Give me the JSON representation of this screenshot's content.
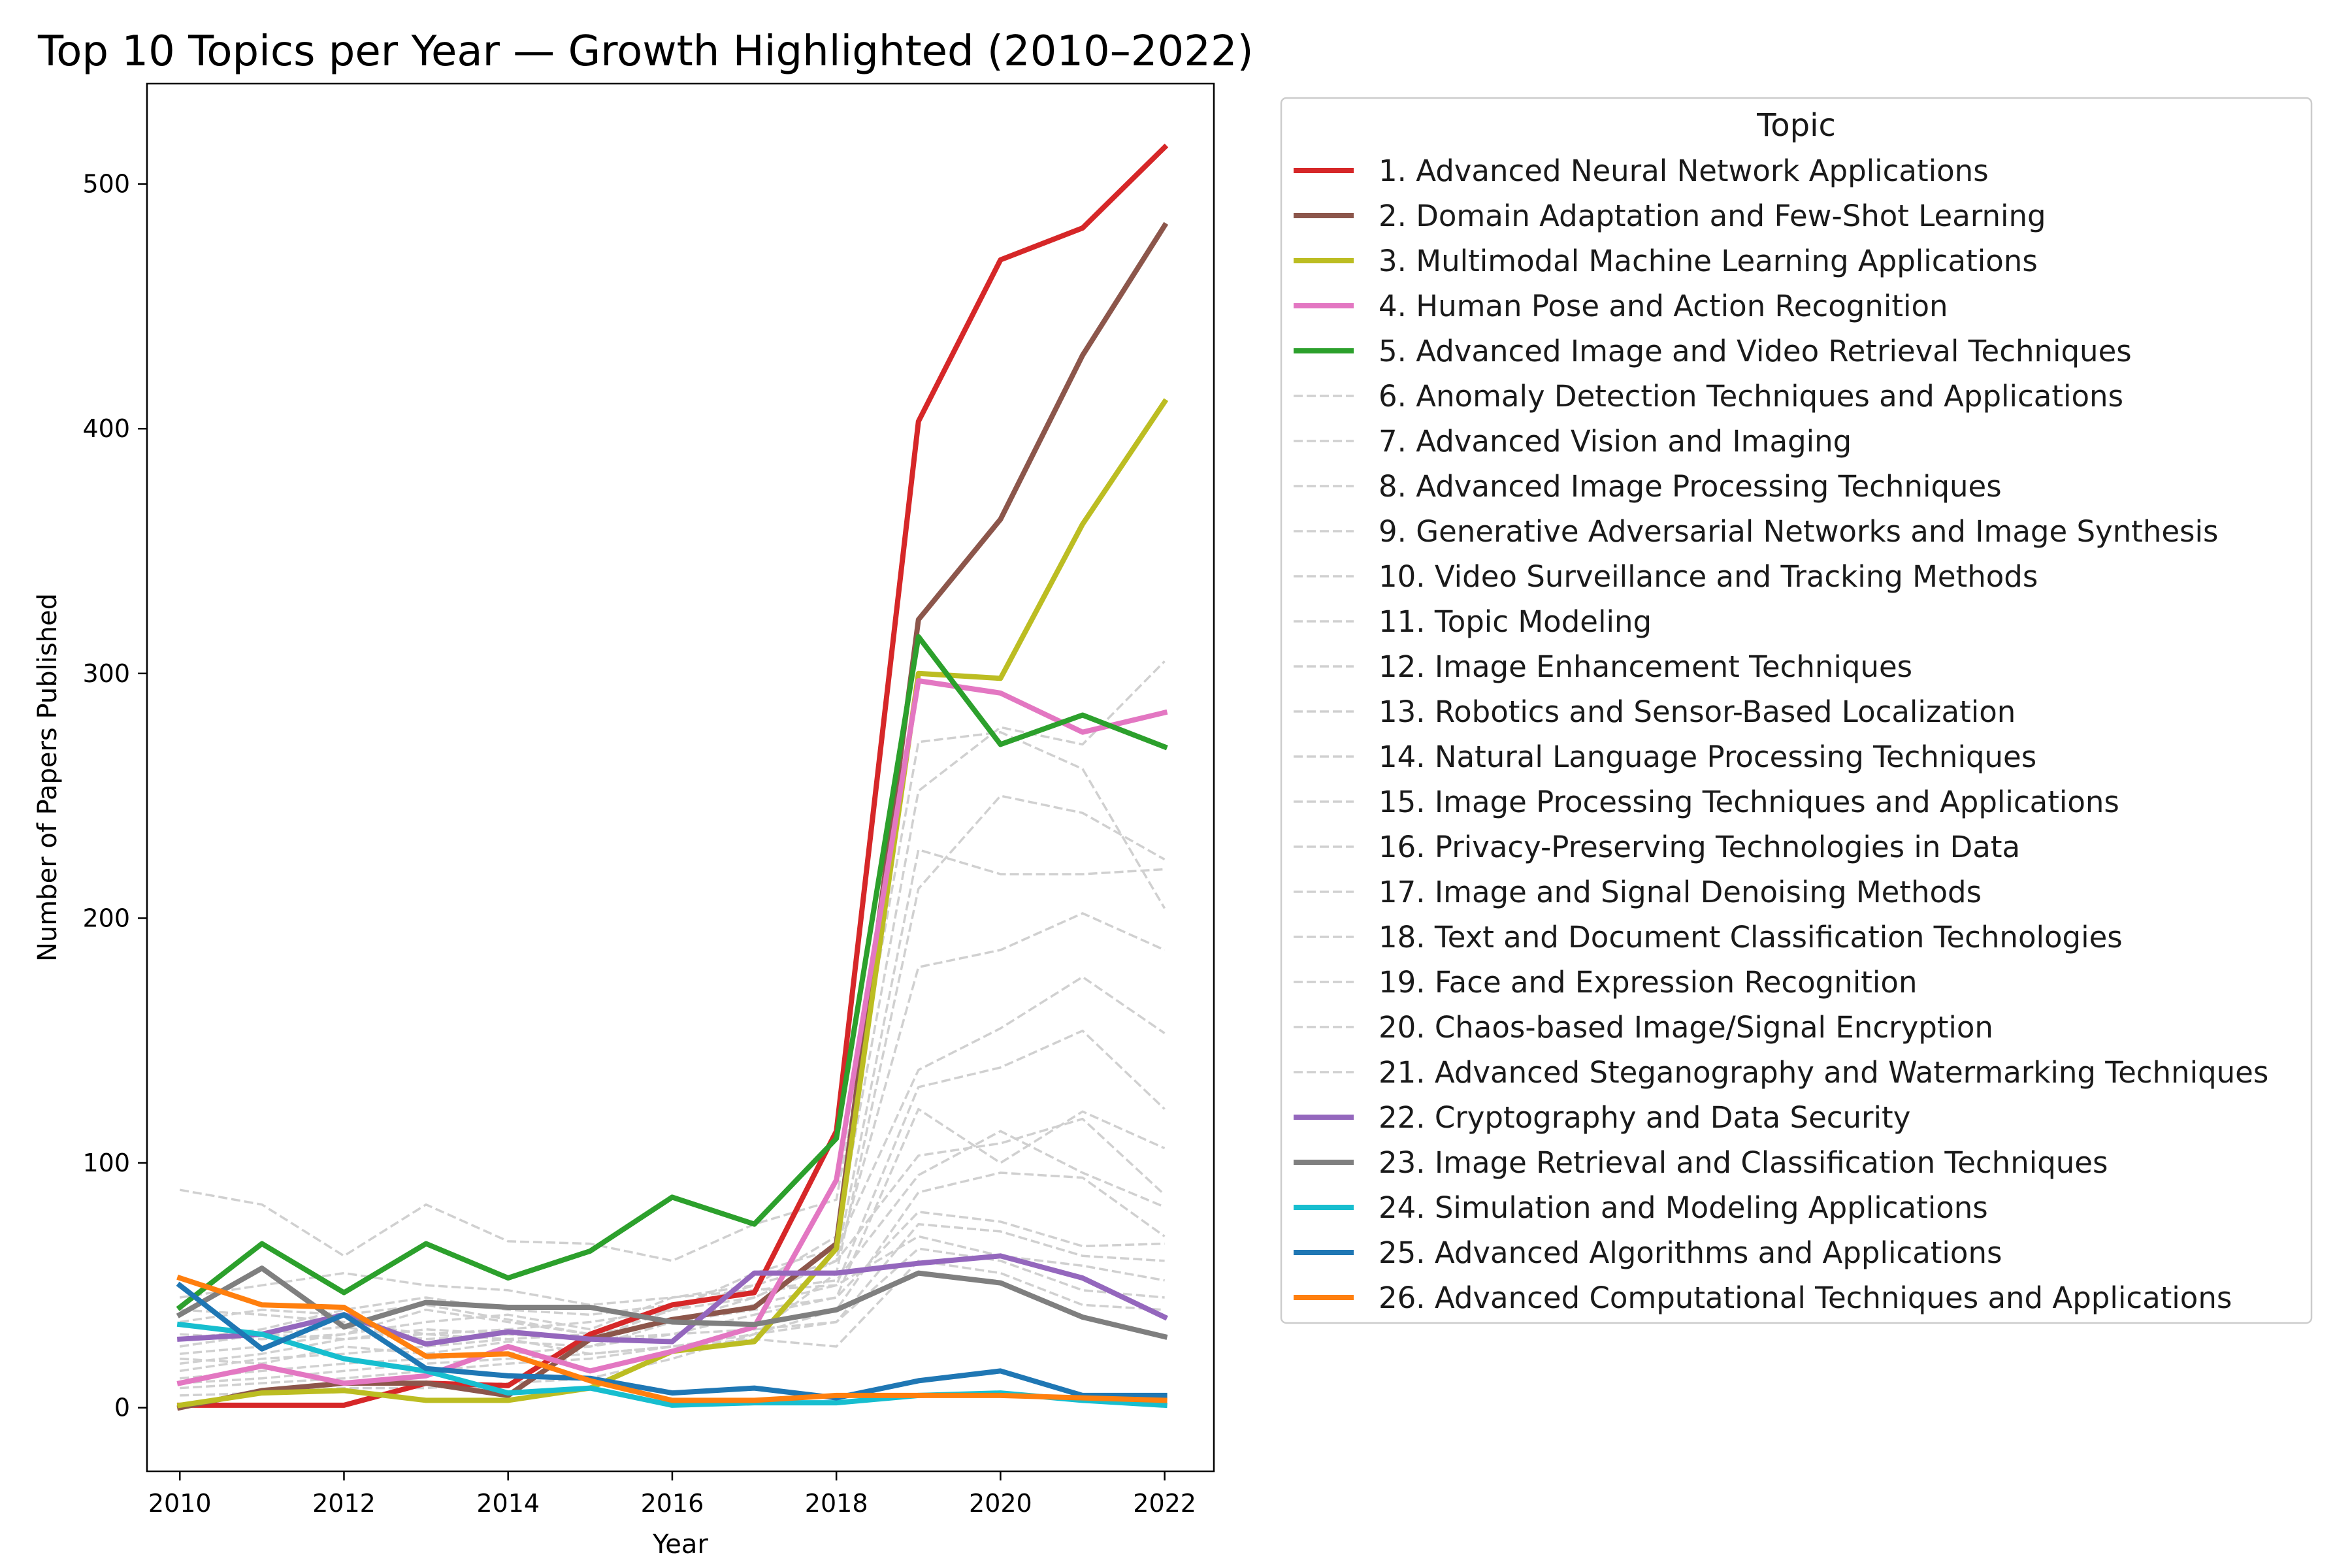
{
  "chart_data": {
    "type": "line",
    "title": "Top 10 Topics per Year — Growth Highlighted (2010–2022)",
    "xlabel": "Year",
    "ylabel": "Number of Papers Published",
    "xlim": [
      2009.6,
      2022.6
    ],
    "ylim": [
      -26,
      541
    ],
    "xticks": [
      2010,
      2012,
      2014,
      2016,
      2018,
      2020,
      2022
    ],
    "yticks": [
      0,
      100,
      200,
      300,
      400,
      500
    ],
    "grid": false,
    "legend": {
      "title": "Topic",
      "placement": "outside-right"
    },
    "x": [
      2010,
      2011,
      2012,
      2013,
      2014,
      2015,
      2016,
      2017,
      2018,
      2019,
      2020,
      2021,
      2022
    ],
    "series": [
      {
        "name": "1. Advanced Neural Network Applications",
        "highlight": true,
        "color": "#d62728",
        "values": [
          1,
          1,
          1,
          10,
          9,
          30,
          42,
          47,
          113,
          403,
          469,
          482,
          515
        ]
      },
      {
        "name": "2. Domain Adaptation and Few-Shot Learning",
        "highlight": true,
        "color": "#8c564b",
        "values": [
          0,
          7,
          10,
          10,
          5,
          28,
          36,
          41,
          67,
          322,
          363,
          430,
          483
        ]
      },
      {
        "name": "3. Multimodal Machine Learning Applications",
        "highlight": true,
        "color": "#bcbd22",
        "values": [
          1,
          6,
          7,
          3,
          3,
          8,
          23,
          27,
          65,
          300,
          298,
          361,
          411
        ]
      },
      {
        "name": "4. Human Pose and Action Recognition",
        "highlight": true,
        "color": "#e377c2",
        "values": [
          10,
          17,
          10,
          13,
          25,
          15,
          23,
          33,
          93,
          297,
          292,
          276,
          284
        ]
      },
      {
        "name": "5. Advanced Image and Video Retrieval Techniques",
        "highlight": true,
        "color": "#2ca02c",
        "values": [
          41,
          67,
          47,
          67,
          53,
          64,
          86,
          75,
          110,
          315,
          271,
          283,
          270
        ]
      },
      {
        "name": "6. Anomaly Detection Techniques and Applications",
        "highlight": false,
        "color": "#d0d0d0",
        "values": [
          89,
          83,
          62,
          83,
          68,
          67,
          60,
          75,
          85,
          272,
          276,
          261,
          204
        ]
      },
      {
        "name": "7. Advanced Vision and Imaging",
        "highlight": false,
        "color": "#d0d0d0",
        "values": [
          30,
          28,
          30,
          40,
          35,
          30,
          40,
          50,
          70,
          252,
          278,
          271,
          305
        ]
      },
      {
        "name": "8. Advanced Image Processing Techniques",
        "highlight": false,
        "color": "#d0d0d0",
        "values": [
          20,
          18,
          25,
          22,
          27,
          25,
          35,
          45,
          60,
          228,
          218,
          218,
          220
        ]
      },
      {
        "name": "9. Generative Adversarial Networks and Image Synthesis",
        "highlight": false,
        "color": "#d0d0d0",
        "values": [
          5,
          6,
          8,
          8,
          10,
          12,
          20,
          30,
          55,
          212,
          250,
          243,
          224
        ]
      },
      {
        "name": "10. Video Surveillance and Tracking Methods",
        "highlight": false,
        "color": "#d0d0d0",
        "values": [
          25,
          30,
          33,
          28,
          30,
          28,
          40,
          45,
          60,
          180,
          187,
          202,
          187
        ]
      },
      {
        "name": "11. Topic Modeling",
        "highlight": false,
        "color": "#d0d0d0",
        "values": [
          18,
          22,
          28,
          30,
          32,
          35,
          40,
          55,
          65,
          138,
          155,
          176,
          153
        ]
      },
      {
        "name": "12. Image Enhancement Techniques",
        "highlight": false,
        "color": "#d0d0d0",
        "values": [
          15,
          20,
          22,
          25,
          28,
          30,
          35,
          42,
          50,
          131,
          139,
          154,
          122
        ]
      },
      {
        "name": "13. Robotics and Sensor-Based Localization",
        "highlight": false,
        "color": "#d0d0d0",
        "values": [
          12,
          15,
          18,
          20,
          22,
          25,
          30,
          38,
          45,
          122,
          100,
          121,
          106
        ]
      },
      {
        "name": "14. Natural Language Processing Techniques",
        "highlight": false,
        "color": "#d0d0d0",
        "values": [
          22,
          25,
          30,
          35,
          38,
          32,
          45,
          50,
          60,
          103,
          108,
          118,
          87
        ]
      },
      {
        "name": "15. Image Processing Techniques and Applications",
        "highlight": false,
        "color": "#d0d0d0",
        "values": [
          28,
          32,
          40,
          45,
          40,
          38,
          42,
          48,
          52,
          95,
          113,
          96,
          82
        ]
      },
      {
        "name": "16. Privacy-Preserving Technologies in Data",
        "highlight": false,
        "color": "#d0d0d0",
        "values": [
          8,
          10,
          12,
          15,
          18,
          20,
          25,
          30,
          40,
          88,
          96,
          94,
          70
        ]
      },
      {
        "name": "17. Image and Signal Denoising Methods",
        "highlight": false,
        "color": "#d0d0d0",
        "values": [
          35,
          40,
          38,
          42,
          36,
          30,
          35,
          40,
          45,
          80,
          76,
          66,
          67
        ]
      },
      {
        "name": "18. Text and Document Classification Technologies",
        "highlight": false,
        "color": "#d0d0d0",
        "values": [
          10,
          12,
          15,
          18,
          20,
          22,
          25,
          30,
          35,
          75,
          72,
          62,
          60
        ]
      },
      {
        "name": "19. Face and Expression Recognition",
        "highlight": false,
        "color": "#d0d0d0",
        "values": [
          45,
          50,
          55,
          50,
          48,
          42,
          45,
          48,
          50,
          70,
          62,
          58,
          52
        ]
      },
      {
        "name": "20. Chaos-based Image/Signal Encryption",
        "highlight": false,
        "color": "#d0d0d0",
        "values": [
          25,
          30,
          28,
          32,
          30,
          28,
          30,
          32,
          35,
          65,
          60,
          48,
          45
        ]
      },
      {
        "name": "21. Advanced Steganography and Watermarking Techniques",
        "highlight": false,
        "color": "#d0d0d0",
        "values": [
          40,
          38,
          35,
          30,
          28,
          22,
          25,
          28,
          25,
          60,
          55,
          42,
          40
        ]
      },
      {
        "name": "22. Cryptography and Data Security",
        "highlight": true,
        "color": "#9467bd",
        "values": [
          28,
          30,
          38,
          26,
          31,
          28,
          27,
          55,
          55,
          59,
          62,
          53,
          37
        ]
      },
      {
        "name": "23. Image Retrieval and Classification Techniques",
        "highlight": true,
        "color": "#7f7f7f",
        "values": [
          38,
          57,
          33,
          43,
          41,
          41,
          35,
          34,
          40,
          55,
          51,
          37,
          29
        ]
      },
      {
        "name": "24. Simulation and Modeling Applications",
        "highlight": true,
        "color": "#17becf",
        "values": [
          34,
          30,
          20,
          15,
          6,
          8,
          1,
          2,
          2,
          5,
          6,
          3,
          1
        ]
      },
      {
        "name": "25. Advanced Algorithms and Applications",
        "highlight": true,
        "color": "#1f77b4",
        "values": [
          50,
          24,
          38,
          16,
          13,
          12,
          6,
          8,
          4,
          11,
          15,
          5,
          5
        ]
      },
      {
        "name": "26. Advanced Computational Techniques and Applications",
        "highlight": true,
        "color": "#ff7f0e",
        "values": [
          53,
          42,
          41,
          21,
          22,
          11,
          3,
          3,
          5,
          5,
          5,
          4,
          3
        ]
      }
    ]
  }
}
